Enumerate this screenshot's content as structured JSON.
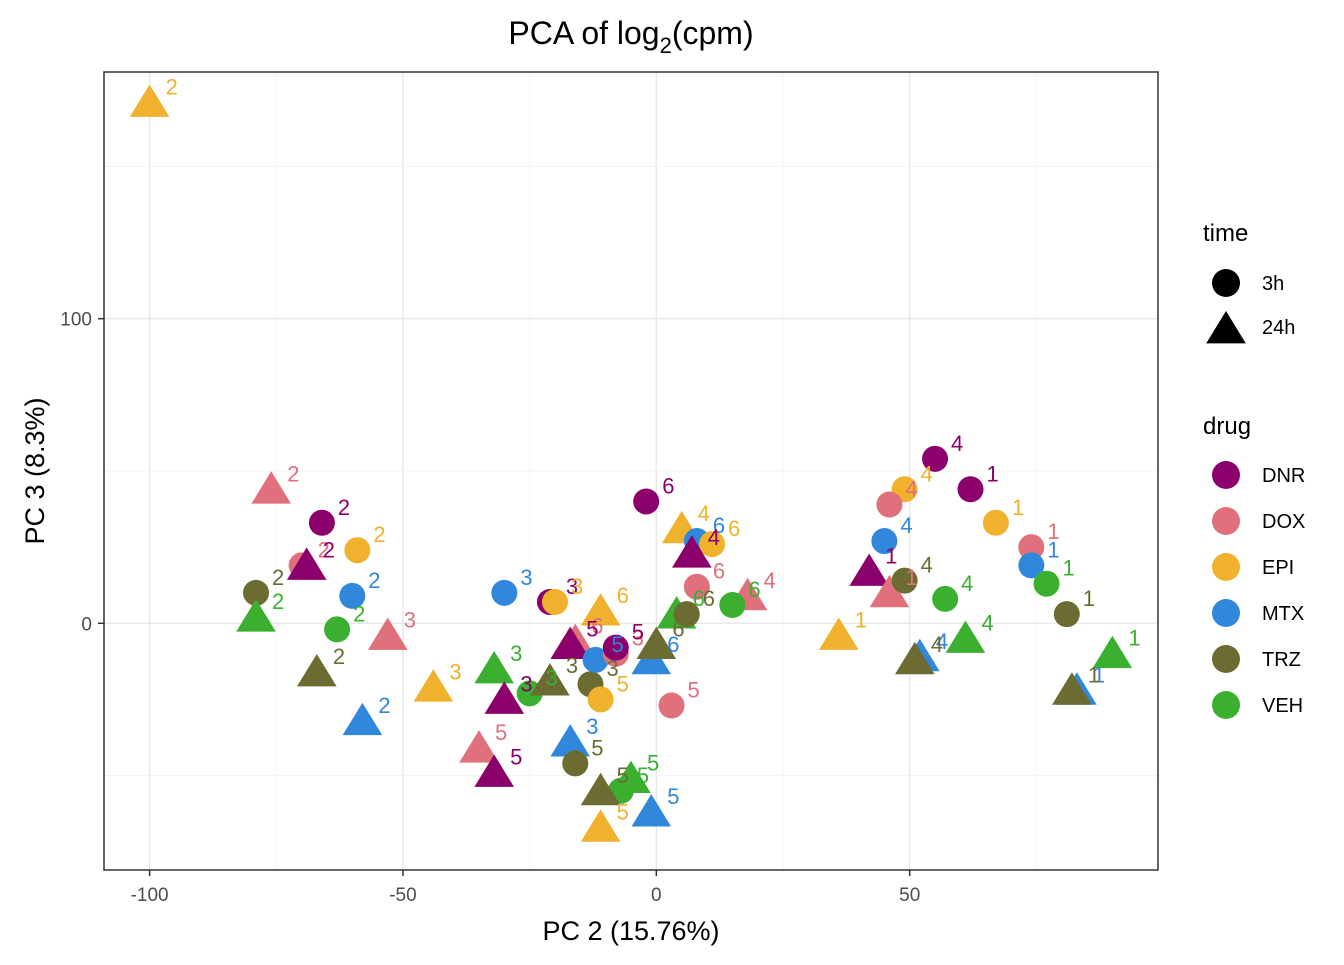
{
  "chart_data": {
    "type": "scatter",
    "title": "PCA of log",
    "title_subscript": "2",
    "title_suffix": "(cpm)",
    "xlabel": "PC 2 (15.76%)",
    "ylabel": "PC 3 (8.3%)",
    "xlim": [
      -109,
      99
    ],
    "ylim": [
      -81,
      181
    ],
    "x_ticks": [
      -100,
      -50,
      0,
      50
    ],
    "y_ticks": [
      0,
      100
    ],
    "grid": true,
    "legend_position": "right",
    "shape_legend": {
      "title": "time",
      "items": [
        {
          "label": "3h",
          "shape": "circle"
        },
        {
          "label": "24h",
          "shape": "triangle"
        }
      ]
    },
    "color_legend": {
      "title": "drug",
      "items": [
        {
          "label": "DNR",
          "color": "#8B006B"
        },
        {
          "label": "DOX",
          "color": "#E0707C"
        },
        {
          "label": "EPI",
          "color": "#F0B12D"
        },
        {
          "label": "MTX",
          "color": "#3087DB"
        },
        {
          "label": "TRZ",
          "color": "#6B6B32"
        },
        {
          "label": "VEH",
          "color": "#3AAF30"
        }
      ]
    },
    "points": [
      {
        "drug": "EPI",
        "time": "24h",
        "x": -100,
        "y": 171,
        "label": "2"
      },
      {
        "drug": "DOX",
        "time": "24h",
        "x": -76,
        "y": 44,
        "label": "2"
      },
      {
        "drug": "DNR",
        "time": "3h",
        "x": -66,
        "y": 33,
        "label": "2"
      },
      {
        "drug": "EPI",
        "time": "3h",
        "x": -59,
        "y": 24,
        "label": "2"
      },
      {
        "drug": "DOX",
        "time": "3h",
        "x": -70,
        "y": 19,
        "label": "2"
      },
      {
        "drug": "DNR",
        "time": "24h",
        "x": -69,
        "y": 19,
        "label": "2"
      },
      {
        "drug": "MTX",
        "time": "3h",
        "x": -60,
        "y": 9,
        "label": "2"
      },
      {
        "drug": "TRZ",
        "time": "3h",
        "x": -79,
        "y": 10,
        "label": "2"
      },
      {
        "drug": "VEH",
        "time": "24h",
        "x": -79,
        "y": 2,
        "label": "2"
      },
      {
        "drug": "VEH",
        "time": "3h",
        "x": -63,
        "y": -2,
        "label": "2"
      },
      {
        "drug": "TRZ",
        "time": "24h",
        "x": -67,
        "y": -16,
        "label": "2"
      },
      {
        "drug": "MTX",
        "time": "24h",
        "x": -58,
        "y": -32,
        "label": "2"
      },
      {
        "drug": "DOX",
        "time": "24h",
        "x": -53,
        "y": -4,
        "label": "3"
      },
      {
        "drug": "EPI",
        "time": "24h",
        "x": -44,
        "y": -21,
        "label": "3"
      },
      {
        "drug": "MTX",
        "time": "3h",
        "x": -30,
        "y": 10,
        "label": "3"
      },
      {
        "drug": "DNR",
        "time": "3h",
        "x": -21,
        "y": 7,
        "label": "3"
      },
      {
        "drug": "EPI",
        "time": "3h",
        "x": -20,
        "y": 7,
        "label": "3"
      },
      {
        "drug": "VEH",
        "time": "24h",
        "x": -32,
        "y": -15,
        "label": "3"
      },
      {
        "drug": "DNR",
        "time": "24h",
        "x": -30,
        "y": -25,
        "label": "3"
      },
      {
        "drug": "VEH",
        "time": "3h",
        "x": -25,
        "y": -23,
        "label": "3"
      },
      {
        "drug": "TRZ",
        "time": "24h",
        "x": -21,
        "y": -19,
        "label": "3"
      },
      {
        "drug": "TRZ",
        "time": "3h",
        "x": -13,
        "y": -20,
        "label": "3"
      },
      {
        "drug": "DOX",
        "time": "24h",
        "x": -35,
        "y": -41,
        "label": "5"
      },
      {
        "drug": "DNR",
        "time": "24h",
        "x": -32,
        "y": -49,
        "label": "5"
      },
      {
        "drug": "MTX",
        "time": "24h",
        "x": -17,
        "y": -39,
        "label": "3"
      },
      {
        "drug": "TRZ",
        "time": "3h",
        "x": -16,
        "y": -46,
        "label": "5"
      },
      {
        "drug": "EPI",
        "time": "3h",
        "x": -11,
        "y": -25,
        "label": "5"
      },
      {
        "drug": "DOX",
        "time": "24h",
        "x": -16,
        "y": -6,
        "label": "6"
      },
      {
        "drug": "DNR",
        "time": "24h",
        "x": -17,
        "y": -7,
        "label": "5"
      },
      {
        "drug": "EPI",
        "time": "24h",
        "x": -11,
        "y": 4,
        "label": "6"
      },
      {
        "drug": "MTX",
        "time": "3h",
        "x": -12,
        "y": -12,
        "label": "5"
      },
      {
        "drug": "DOX",
        "time": "3h",
        "x": -8,
        "y": -10,
        "label": "3"
      },
      {
        "drug": "DNR",
        "time": "3h",
        "x": -8,
        "y": -8,
        "label": "5"
      },
      {
        "drug": "MTX",
        "time": "24h",
        "x": -1,
        "y": -12,
        "label": "6"
      },
      {
        "drug": "TRZ",
        "time": "24h",
        "x": 0,
        "y": -7,
        "label": "6"
      },
      {
        "drug": "VEH",
        "time": "24h",
        "x": 4,
        "y": 3,
        "label": "6"
      },
      {
        "drug": "TRZ",
        "time": "3h",
        "x": 6,
        "y": 3,
        "label": "6"
      },
      {
        "drug": "DOX",
        "time": "3h",
        "x": 3,
        "y": -27,
        "label": "5"
      },
      {
        "drug": "DNR",
        "time": "3h",
        "x": -2,
        "y": 40,
        "label": "6"
      },
      {
        "drug": "EPI",
        "time": "24h",
        "x": 5,
        "y": 31,
        "label": "4"
      },
      {
        "drug": "MTX",
        "time": "3h",
        "x": 8,
        "y": 27,
        "label": "6"
      },
      {
        "drug": "EPI",
        "time": "3h",
        "x": 11,
        "y": 26,
        "label": "6"
      },
      {
        "drug": "DNR",
        "time": "24h",
        "x": 7,
        "y": 23,
        "label": "4"
      },
      {
        "drug": "DOX",
        "time": "3h",
        "x": 8,
        "y": 12,
        "label": "6"
      },
      {
        "drug": "DOX",
        "time": "24h",
        "x": 18,
        "y": 9,
        "label": "4"
      },
      {
        "drug": "VEH",
        "time": "3h",
        "x": 15,
        "y": 6,
        "label": "6"
      },
      {
        "drug": "VEH",
        "time": "24h",
        "x": -5,
        "y": -51,
        "label": "5"
      },
      {
        "drug": "VEH",
        "time": "3h",
        "x": -7,
        "y": -55,
        "label": "5"
      },
      {
        "drug": "TRZ",
        "time": "24h",
        "x": -11,
        "y": -55,
        "label": "5"
      },
      {
        "drug": "MTX",
        "time": "24h",
        "x": -1,
        "y": -62,
        "label": "5"
      },
      {
        "drug": "EPI",
        "time": "24h",
        "x": -11,
        "y": -67,
        "label": "5"
      },
      {
        "drug": "DNR",
        "time": "3h",
        "x": 55,
        "y": 54,
        "label": "4"
      },
      {
        "drug": "EPI",
        "time": "3h",
        "x": 49,
        "y": 44,
        "label": "4"
      },
      {
        "drug": "DOX",
        "time": "3h",
        "x": 46,
        "y": 39,
        "label": "4"
      },
      {
        "drug": "MTX",
        "time": "3h",
        "x": 45,
        "y": 27,
        "label": "4"
      },
      {
        "drug": "DNR",
        "time": "24h",
        "x": 42,
        "y": 17,
        "label": "1"
      },
      {
        "drug": "DOX",
        "time": "24h",
        "x": 46,
        "y": 10,
        "label": "1"
      },
      {
        "drug": "TRZ",
        "time": "3h",
        "x": 49,
        "y": 14,
        "label": "4"
      },
      {
        "drug": "VEH",
        "time": "3h",
        "x": 57,
        "y": 8,
        "label": "4"
      },
      {
        "drug": "EPI",
        "time": "24h",
        "x": 36,
        "y": -4,
        "label": "1"
      },
      {
        "drug": "MTX",
        "time": "24h",
        "x": 52,
        "y": -11,
        "label": "4"
      },
      {
        "drug": "TRZ",
        "time": "24h",
        "x": 51,
        "y": -12,
        "label": "4"
      },
      {
        "drug": "VEH",
        "time": "24h",
        "x": 61,
        "y": -5,
        "label": "4"
      },
      {
        "drug": "DNR",
        "time": "3h",
        "x": 62,
        "y": 44,
        "label": "1"
      },
      {
        "drug": "EPI",
        "time": "3h",
        "x": 67,
        "y": 33,
        "label": "1"
      },
      {
        "drug": "DOX",
        "time": "3h",
        "x": 74,
        "y": 25,
        "label": "1"
      },
      {
        "drug": "MTX",
        "time": "3h",
        "x": 74,
        "y": 19,
        "label": "1"
      },
      {
        "drug": "VEH",
        "time": "3h",
        "x": 77,
        "y": 13,
        "label": "1"
      },
      {
        "drug": "TRZ",
        "time": "3h",
        "x": 81,
        "y": 3,
        "label": "1"
      },
      {
        "drug": "VEH",
        "time": "24h",
        "x": 90,
        "y": -10,
        "label": "1"
      },
      {
        "drug": "MTX",
        "time": "24h",
        "x": 83,
        "y": -22,
        "label": "1"
      },
      {
        "drug": "TRZ",
        "time": "24h",
        "x": 82,
        "y": -22,
        "label": "1"
      }
    ]
  }
}
